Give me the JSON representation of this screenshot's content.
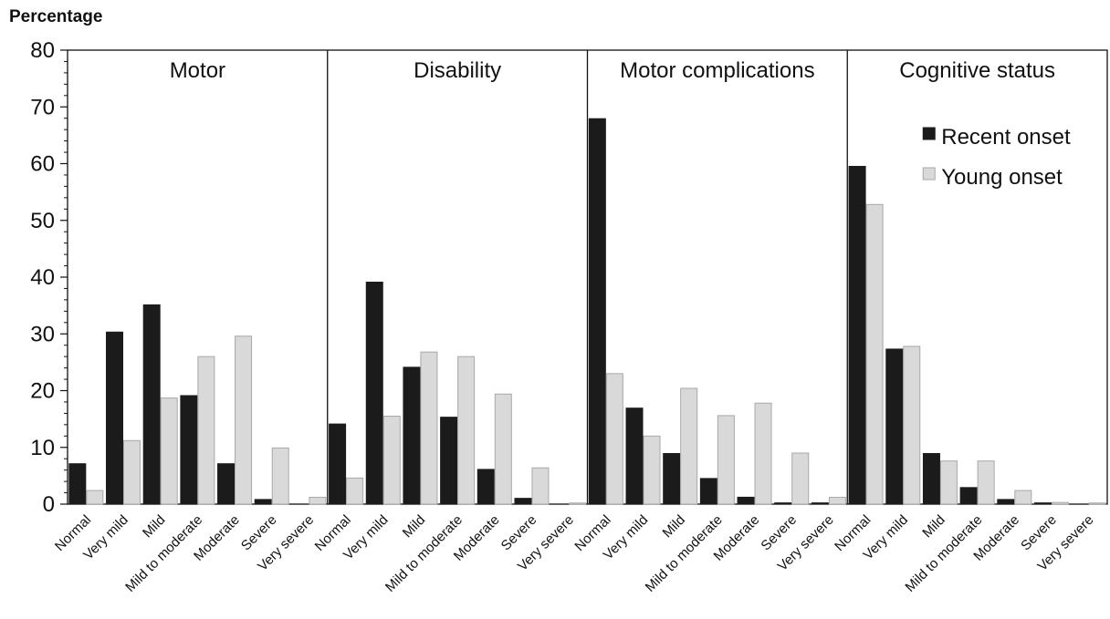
{
  "chart_data": {
    "type": "bar",
    "ylabel": "Percentage",
    "ylim": [
      0,
      80
    ],
    "yticks": [
      0,
      10,
      20,
      30,
      40,
      50,
      60,
      70,
      80
    ],
    "grid": false,
    "legend_position": "top-right inside last panel",
    "categories": [
      "Normal",
      "Very mild",
      "Mild",
      "Mild to moderate",
      "Moderate",
      "Severe",
      "Very severe"
    ],
    "series_names": [
      "Recent onset",
      "Young onset"
    ],
    "colors": {
      "Recent onset": "#1b1b1b",
      "Young onset": "#d9d9d9",
      "young_edge": "#a8a8a8"
    },
    "panels": [
      {
        "title": "Motor",
        "series": [
          {
            "name": "Recent onset",
            "values": [
              7.2,
              30.4,
              35.2,
              19.2,
              7.2,
              0.9,
              0
            ]
          },
          {
            "name": "Young onset",
            "values": [
              2.4,
              11.2,
              18.7,
              26.0,
              29.6,
              9.9,
              1.2
            ]
          }
        ]
      },
      {
        "title": "Disability",
        "series": [
          {
            "name": "Recent onset",
            "values": [
              14.2,
              39.2,
              24.2,
              15.4,
              6.2,
              1.1,
              0
            ]
          },
          {
            "name": "Young onset",
            "values": [
              4.6,
              15.5,
              26.8,
              26.0,
              19.4,
              6.4,
              0.2
            ]
          }
        ]
      },
      {
        "title": "Motor complications",
        "series": [
          {
            "name": "Recent onset",
            "values": [
              68.0,
              17.0,
              9.0,
              4.6,
              1.3,
              0.3,
              0.3
            ]
          },
          {
            "name": "Young onset",
            "values": [
              23.0,
              12.0,
              20.4,
              15.6,
              17.8,
              9.0,
              1.2
            ]
          }
        ]
      },
      {
        "title": "Cognitive status",
        "series": [
          {
            "name": "Recent onset",
            "values": [
              59.6,
              27.4,
              9.0,
              3.0,
              0.9,
              0.3,
              0
            ]
          },
          {
            "name": "Young onset",
            "values": [
              52.8,
              27.8,
              7.6,
              7.6,
              2.4,
              0.3,
              0.2
            ]
          }
        ]
      }
    ]
  }
}
